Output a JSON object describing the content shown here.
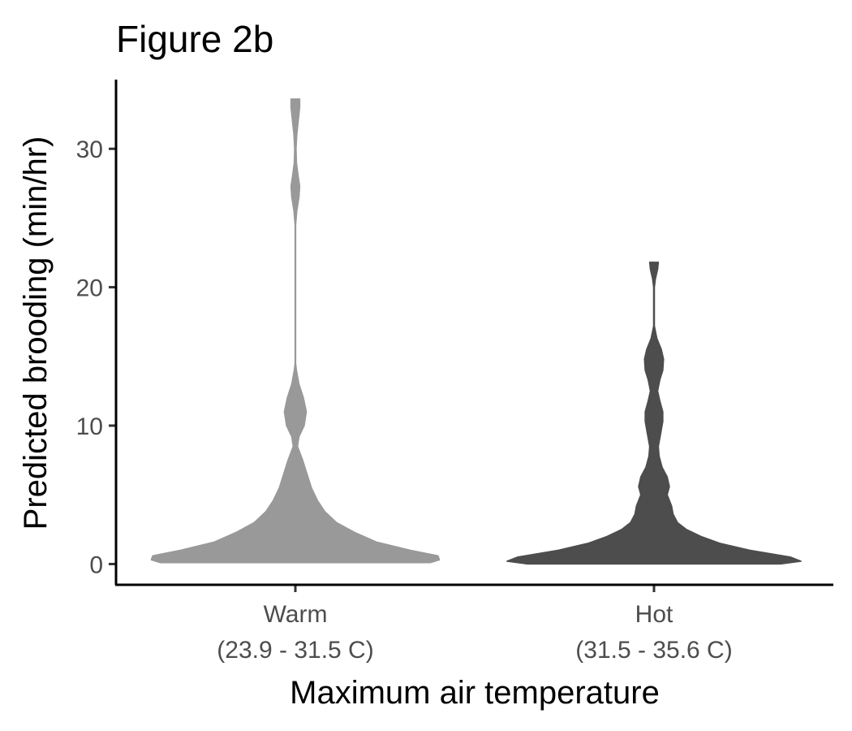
{
  "chart_data": {
    "type": "violin",
    "title": "Figure 2b",
    "xlabel": "Maximum air temperature",
    "ylabel": "Predicted brooding (min/hr)",
    "ylim": [
      -1.5,
      35
    ],
    "yticks": [
      0,
      10,
      20,
      30
    ],
    "grid": false,
    "legend": "none",
    "categories": [
      {
        "name": "Warm",
        "range": "(23.9 - 31.5 C)",
        "color": "#999999",
        "min": 0.1,
        "max": 33.6,
        "profile": [
          [
            0.1,
            0.92
          ],
          [
            0.3,
            0.98
          ],
          [
            0.6,
            0.97
          ],
          [
            1.0,
            0.78
          ],
          [
            1.6,
            0.55
          ],
          [
            2.3,
            0.4
          ],
          [
            3.0,
            0.28
          ],
          [
            3.8,
            0.2
          ],
          [
            4.6,
            0.15
          ],
          [
            5.5,
            0.11
          ],
          [
            6.5,
            0.08
          ],
          [
            7.5,
            0.05
          ],
          [
            8.5,
            0.015
          ],
          [
            9.2,
            0.025
          ],
          [
            10.0,
            0.06
          ],
          [
            11.0,
            0.075
          ],
          [
            12.0,
            0.055
          ],
          [
            13.0,
            0.025
          ],
          [
            14.0,
            0.008
          ],
          [
            14.5,
            0.002
          ],
          [
            24.5,
            0.002
          ],
          [
            25.5,
            0.01
          ],
          [
            26.5,
            0.025
          ],
          [
            27.3,
            0.03
          ],
          [
            28.0,
            0.02
          ],
          [
            29.0,
            0.008
          ],
          [
            30.0,
            0.005
          ],
          [
            31.0,
            0.01
          ],
          [
            32.0,
            0.02
          ],
          [
            33.0,
            0.03
          ],
          [
            33.6,
            0.03
          ]
        ]
      },
      {
        "name": "Hot",
        "range": "(31.5 - 35.6 C)",
        "color": "#4d4d4d",
        "min": 0.0,
        "max": 21.8,
        "profile": [
          [
            0.0,
            0.86
          ],
          [
            0.2,
            1.0
          ],
          [
            0.5,
            0.93
          ],
          [
            1.0,
            0.65
          ],
          [
            1.5,
            0.45
          ],
          [
            2.0,
            0.32
          ],
          [
            2.5,
            0.22
          ],
          [
            3.0,
            0.16
          ],
          [
            3.6,
            0.13
          ],
          [
            4.2,
            0.12
          ],
          [
            5.0,
            0.09
          ],
          [
            5.6,
            0.105
          ],
          [
            6.3,
            0.09
          ],
          [
            7.0,
            0.055
          ],
          [
            7.8,
            0.035
          ],
          [
            8.5,
            0.03
          ],
          [
            9.4,
            0.045
          ],
          [
            10.3,
            0.06
          ],
          [
            11.0,
            0.06
          ],
          [
            11.8,
            0.04
          ],
          [
            12.5,
            0.025
          ],
          [
            13.3,
            0.04
          ],
          [
            14.0,
            0.06
          ],
          [
            14.8,
            0.065
          ],
          [
            15.5,
            0.05
          ],
          [
            16.3,
            0.02
          ],
          [
            17.2,
            0.003
          ],
          [
            20.0,
            0.003
          ],
          [
            20.6,
            0.01
          ],
          [
            21.3,
            0.025
          ],
          [
            21.8,
            0.03
          ]
        ]
      }
    ]
  }
}
